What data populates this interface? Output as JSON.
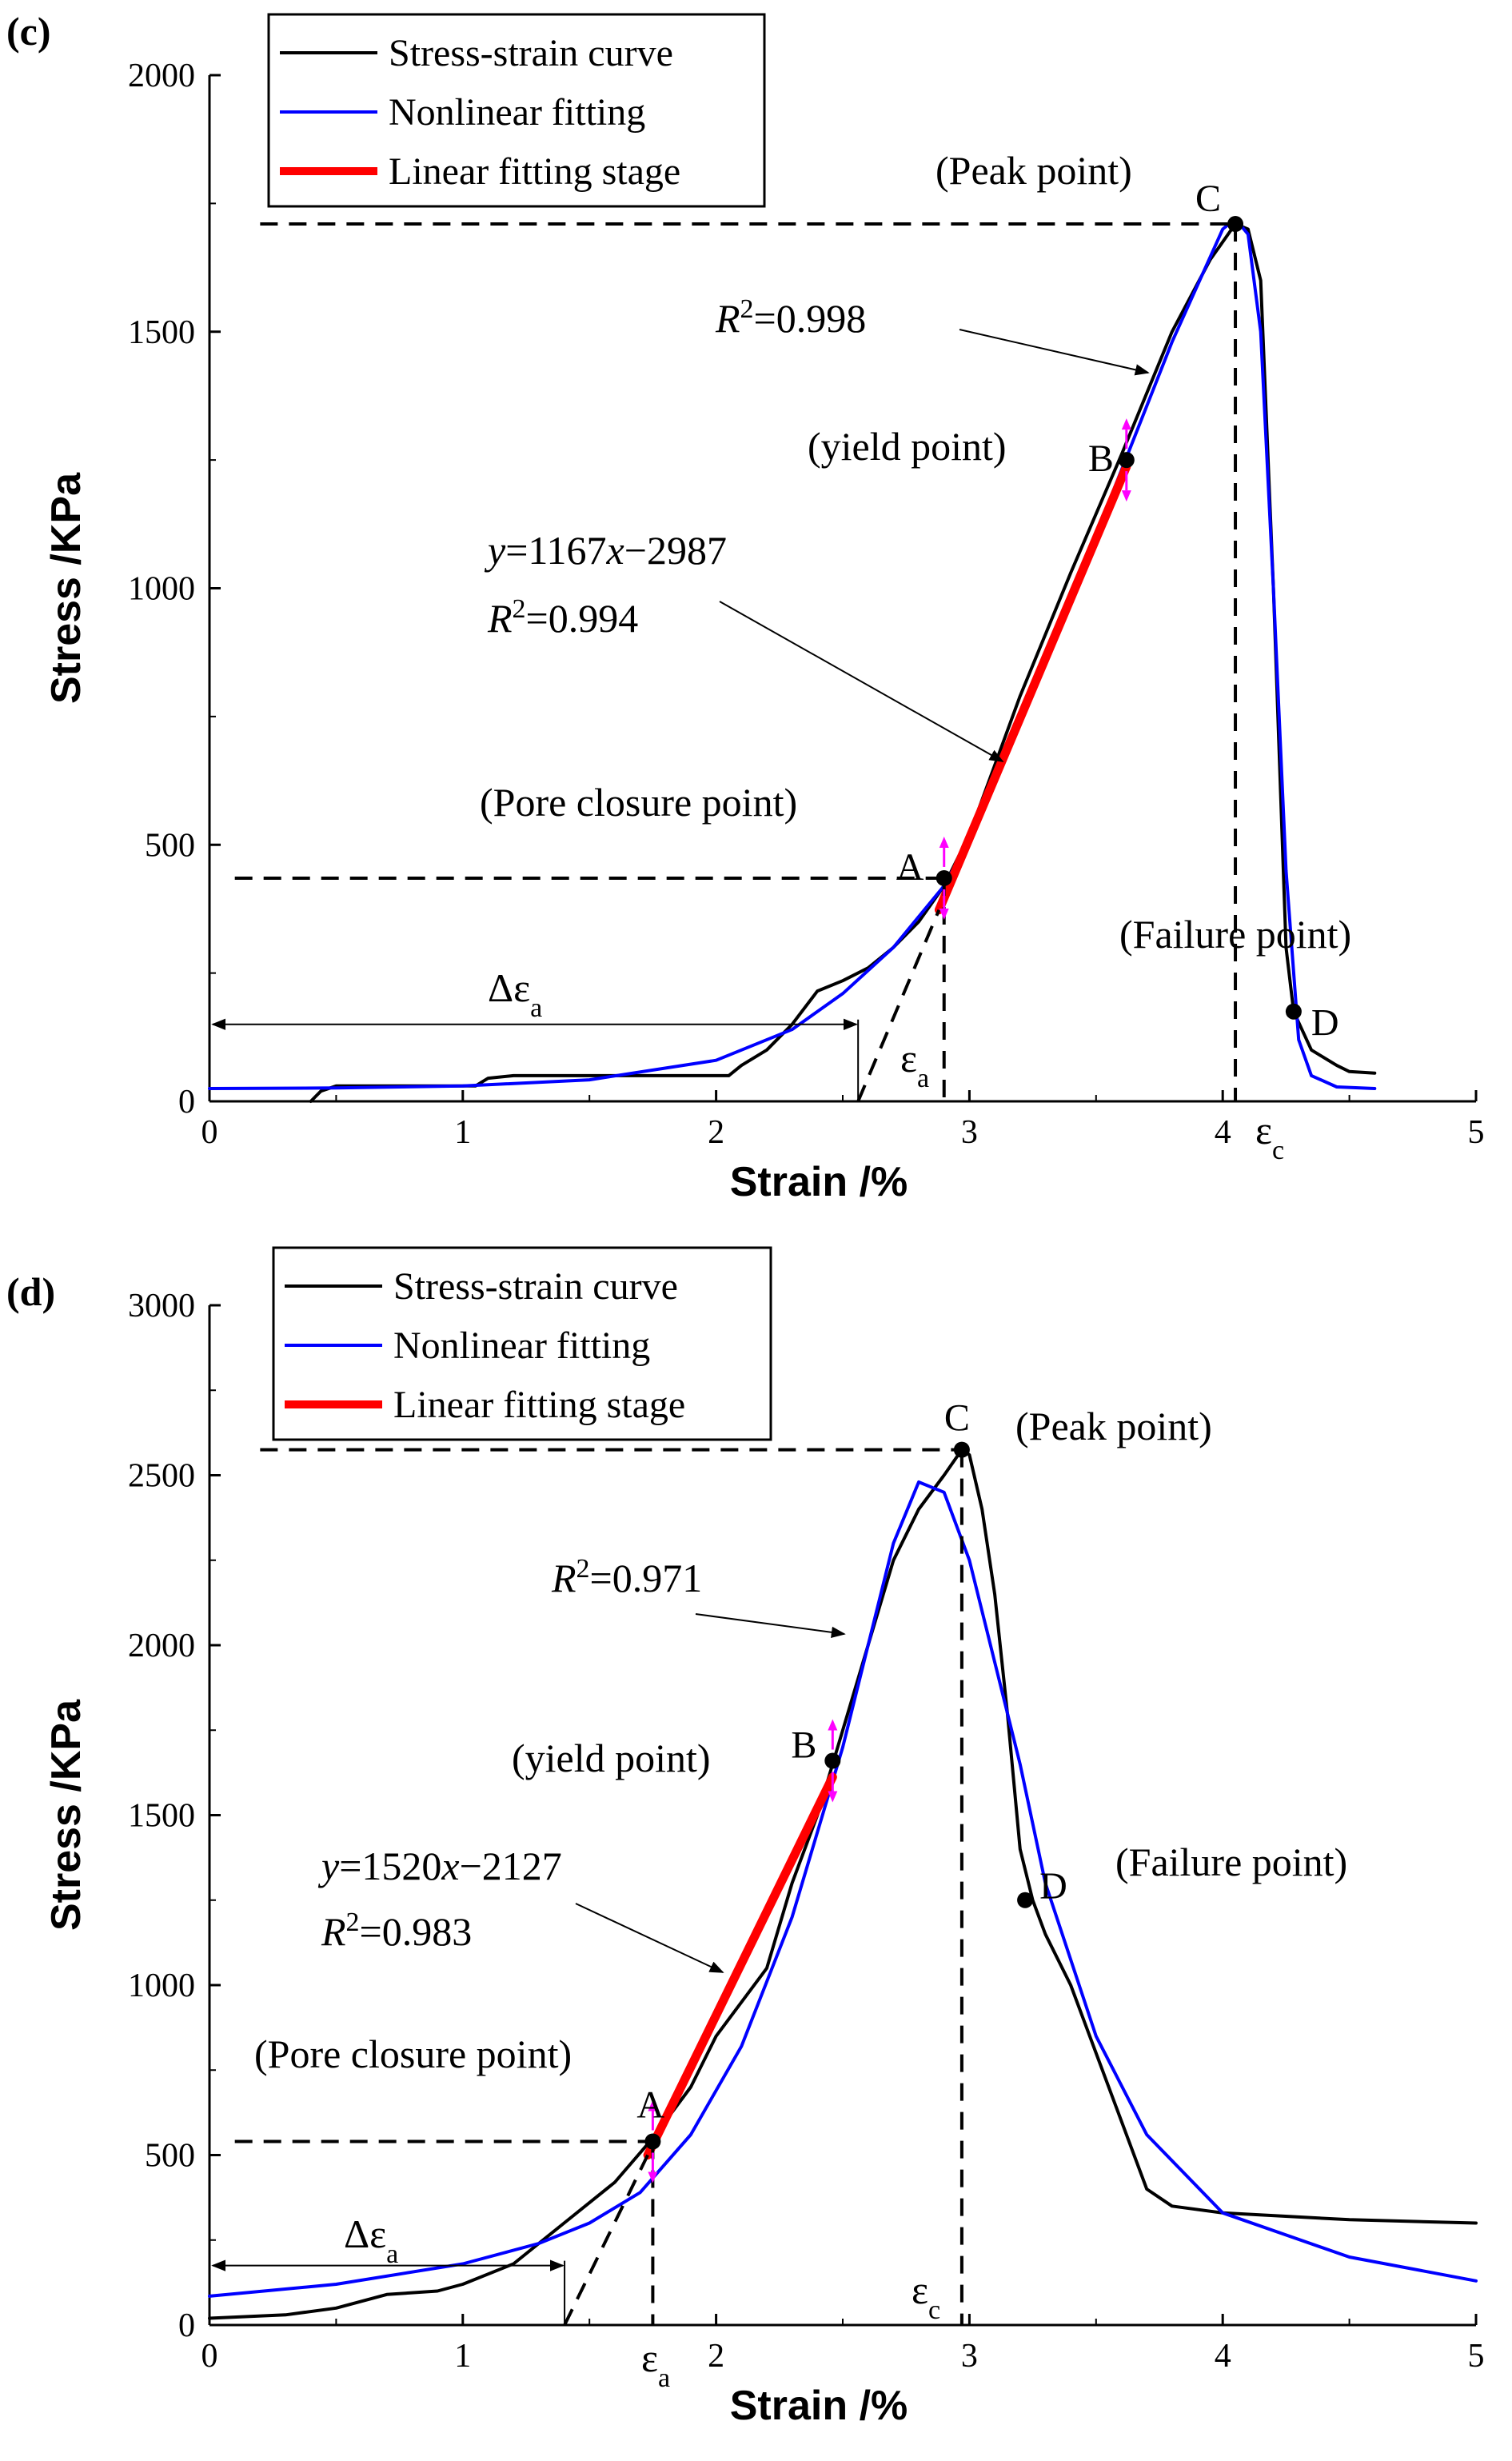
{
  "chart_data": [
    {
      "panel": "(c)",
      "type": "line",
      "xlabel": "Strain /%",
      "ylabel": "Stress /KPa",
      "xlim": [
        0,
        5
      ],
      "ylim": [
        0,
        2000
      ],
      "xticks": [
        "0",
        "1",
        "2",
        "3",
        "4",
        "5"
      ],
      "yticks": [
        "0",
        "500",
        "1000",
        "1500",
        "2000"
      ],
      "legend": [
        "Stress-strain curve",
        "Nonlinear fitting",
        "Linear fitting stage"
      ],
      "series": [
        {
          "name": "Stress-strain curve",
          "color": "#000000",
          "x": [
            0.4,
            0.44,
            0.5,
            1.05,
            1.1,
            1.2,
            2.05,
            2.1,
            2.2,
            2.3,
            2.4,
            2.5,
            2.6,
            2.7,
            2.8,
            2.9,
            3.0,
            3.2,
            3.4,
            3.6,
            3.8,
            3.95,
            4.05,
            4.1,
            4.15,
            4.2,
            4.25,
            4.28,
            4.35,
            4.45,
            4.5,
            4.6
          ],
          "y": [
            0,
            20,
            30,
            30,
            45,
            50,
            50,
            70,
            100,
            150,
            215,
            235,
            260,
            300,
            350,
            420,
            520,
            790,
            1030,
            1260,
            1500,
            1640,
            1710,
            1700,
            1600,
            1000,
            300,
            175,
            100,
            70,
            58,
            55
          ]
        },
        {
          "name": "Nonlinear fitting",
          "color": "#0000ff",
          "x": [
            0,
            0.5,
            1.0,
            1.5,
            2.0,
            2.3,
            2.5,
            2.7,
            2.9,
            3.0,
            3.2,
            3.4,
            3.6,
            3.8,
            4.0,
            4.05,
            4.1,
            4.15,
            4.2,
            4.25,
            4.3,
            4.35,
            4.45,
            4.6
          ],
          "y": [
            25,
            26,
            30,
            42,
            80,
            140,
            210,
            300,
            420,
            510,
            740,
            980,
            1230,
            1480,
            1700,
            1720,
            1690,
            1500,
            1000,
            450,
            120,
            50,
            28,
            25
          ]
        },
        {
          "name": "Linear fitting stage",
          "color": "#ff0000",
          "x": [
            2.88,
            3.62
          ],
          "y": [
            373,
            1237
          ]
        }
      ],
      "points": [
        {
          "label": "A",
          "x": 2.9,
          "y": 435,
          "note": "(Pore closure point)"
        },
        {
          "label": "B",
          "x": 3.62,
          "y": 1250,
          "note": "(yield point)"
        },
        {
          "label": "C",
          "x": 4.05,
          "y": 1710,
          "note": "(Peak point)"
        },
        {
          "label": "D",
          "x": 4.28,
          "y": 175,
          "note": "(Failure point)"
        }
      ],
      "annotations": {
        "r2_nonlinear": {
          "pre": "R",
          "sup": "2",
          "post": "=0.998"
        },
        "linear_eq": {
          "y": "y",
          "eq1": "=1167",
          "x": "x",
          "eq2": "−2987"
        },
        "r2_linear": {
          "pre": "R",
          "sup": "2",
          "post": "=0.994"
        },
        "delta_eps": {
          "pre": "Δε",
          "sub": "a"
        },
        "eps_a": {
          "pre": "ε",
          "sub": "a"
        },
        "eps_c": {
          "pre": "ε",
          "sub": "c"
        }
      }
    },
    {
      "panel": "(d)",
      "type": "line",
      "xlabel": "Strain /%",
      "ylabel": "Stress /KPa",
      "xlim": [
        0,
        5
      ],
      "ylim": [
        0,
        3000
      ],
      "xticks": [
        "0",
        "1",
        "2",
        "3",
        "4",
        "5"
      ],
      "yticks": [
        "0",
        "500",
        "1000",
        "1500",
        "2000",
        "2500",
        "3000"
      ],
      "legend": [
        "Stress-strain curve",
        "Nonlinear fitting",
        "Linear fitting stage"
      ],
      "series": [
        {
          "name": "Stress-strain curve",
          "color": "#000000",
          "x": [
            0,
            0.3,
            0.5,
            0.7,
            0.9,
            1.0,
            1.2,
            1.4,
            1.6,
            1.75,
            1.9,
            2.0,
            2.1,
            2.2,
            2.3,
            2.4,
            2.5,
            2.6,
            2.7,
            2.8,
            2.9,
            2.97,
            3.0,
            3.05,
            3.1,
            3.15,
            3.2,
            3.25,
            3.3,
            3.4,
            3.5,
            3.6,
            3.7,
            3.8,
            4.0,
            4.5,
            5.0
          ],
          "y": [
            20,
            30,
            50,
            90,
            100,
            120,
            180,
            300,
            420,
            550,
            700,
            850,
            950,
            1050,
            1300,
            1500,
            1750,
            2000,
            2250,
            2400,
            2500,
            2575,
            2560,
            2400,
            2150,
            1800,
            1400,
            1250,
            1150,
            1000,
            800,
            600,
            400,
            350,
            330,
            310,
            300
          ]
        },
        {
          "name": "Nonlinear fitting",
          "color": "#0000ff",
          "x": [
            0,
            0.5,
            1.0,
            1.3,
            1.5,
            1.7,
            1.9,
            2.1,
            2.3,
            2.5,
            2.6,
            2.7,
            2.8,
            2.9,
            3.0,
            3.1,
            3.2,
            3.3,
            3.5,
            3.7,
            4.0,
            4.5,
            5.0
          ],
          "y": [
            85,
            120,
            180,
            240,
            300,
            390,
            560,
            820,
            1200,
            1700,
            2000,
            2300,
            2480,
            2450,
            2250,
            1950,
            1650,
            1300,
            850,
            560,
            330,
            200,
            130
          ]
        },
        {
          "name": "Linear fitting stage",
          "color": "#ff0000",
          "x": [
            1.73,
            2.46
          ],
          "y": [
            500,
            1612
          ]
        }
      ],
      "points": [
        {
          "label": "A",
          "x": 1.75,
          "y": 540,
          "note": "(Pore closure point)"
        },
        {
          "label": "B",
          "x": 2.46,
          "y": 1660,
          "note": "(yield point)"
        },
        {
          "label": "C",
          "x": 2.97,
          "y": 2575,
          "note": "(Peak point)"
        },
        {
          "label": "D",
          "x": 3.22,
          "y": 1250,
          "note": "(Failure point)"
        }
      ],
      "annotations": {
        "r2_nonlinear": {
          "pre": "R",
          "sup": "2",
          "post": "=0.971"
        },
        "linear_eq": {
          "y": "y",
          "eq1": "=1520",
          "x": "x",
          "eq2": "−2127"
        },
        "r2_linear": {
          "pre": "R",
          "sup": "2",
          "post": "=0.983"
        },
        "delta_eps": {
          "pre": "Δε",
          "sub": "a"
        },
        "eps_a": {
          "pre": "ε",
          "sub": "a"
        },
        "eps_c": {
          "pre": "ε",
          "sub": "c"
        }
      }
    }
  ]
}
